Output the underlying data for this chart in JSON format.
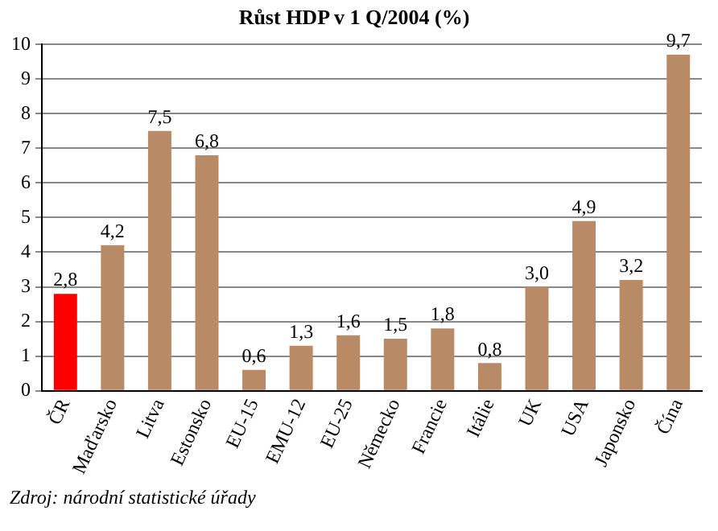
{
  "chart_data": {
    "type": "bar",
    "title": "Růst HDP v 1 Q/2004 (%)",
    "categories": [
      "ČR",
      "Maďarsko",
      "Litva",
      "Estonsko",
      "EU-15",
      "EMU-12",
      "EU-25",
      "Německo",
      "Francie",
      "Itálie",
      "UK",
      "USA",
      "Japonsko",
      "Čína"
    ],
    "values": [
      2.8,
      4.2,
      7.5,
      6.8,
      0.6,
      1.3,
      1.6,
      1.5,
      1.8,
      0.8,
      3.0,
      4.9,
      3.2,
      9.7
    ],
    "value_labels": [
      "2,8",
      "4,2",
      "7,5",
      "6,8",
      "0,6",
      "1,3",
      "1,6",
      "1,5",
      "1,8",
      "0,8",
      "3,0",
      "4,9",
      "3,2",
      "9,7"
    ],
    "colors": [
      "#ff0000",
      "#b98a66",
      "#b98a66",
      "#b98a66",
      "#b98a66",
      "#b98a66",
      "#b98a66",
      "#b98a66",
      "#b98a66",
      "#b98a66",
      "#b98a66",
      "#b98a66",
      "#b98a66",
      "#b98a66"
    ],
    "ylim": [
      0,
      10
    ],
    "yticks": [
      0,
      1,
      2,
      3,
      4,
      5,
      6,
      7,
      8,
      9,
      10
    ],
    "grid": "y",
    "legend": false,
    "annotations": [
      "Zdroj: národní statistické úřady"
    ]
  }
}
